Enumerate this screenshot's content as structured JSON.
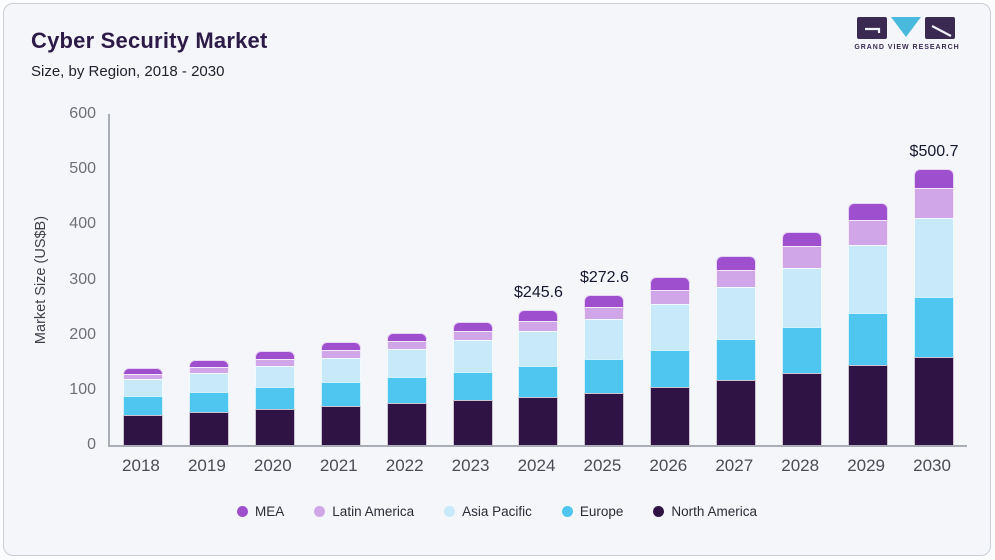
{
  "header": {
    "title": "Cyber Security Market",
    "subtitle": "Size, by Region, 2018 - 2030",
    "logo": {
      "brand": "GRAND VIEW RESEARCH",
      "block_color": "#3a2a52",
      "triangle_color": "#49b9de"
    }
  },
  "chart_data": {
    "type": "bar",
    "stacked": true,
    "title": "Cyber Security Market Size, by Region, 2018 - 2030",
    "xlabel": "",
    "ylabel": "Market Size (US$B)",
    "ylim": [
      0,
      600
    ],
    "yticks": [
      0,
      100,
      200,
      300,
      400,
      500,
      600
    ],
    "grid": false,
    "legend_position": "bottom",
    "categories": [
      "2018",
      "2019",
      "2020",
      "2021",
      "2022",
      "2023",
      "2024",
      "2025",
      "2026",
      "2027",
      "2028",
      "2029",
      "2030"
    ],
    "series": [
      {
        "name": "North America",
        "color": "#301345",
        "values": [
          55.0,
          60.5,
          66.0,
          71.0,
          76.5,
          81.5,
          87.0,
          95.0,
          105.0,
          117.0,
          130.5,
          145.5,
          160.0
        ]
      },
      {
        "name": "Europe",
        "color": "#4fc6ef",
        "values": [
          34.0,
          36.5,
          39.5,
          43.5,
          47.5,
          51.5,
          56.0,
          61.0,
          68.0,
          75.5,
          84.0,
          93.0,
          108.0
        ]
      },
      {
        "name": "Asia Pacific",
        "color": "#c7e9f9",
        "values": [
          30.0,
          33.5,
          38.0,
          43.5,
          49.5,
          56.5,
          63.5,
          72.0,
          82.0,
          93.5,
          107.0,
          123.5,
          144.0
        ]
      },
      {
        "name": "Latin America",
        "color": "#d0a6e8",
        "values": [
          9.5,
          11.0,
          12.5,
          13.8,
          15.2,
          16.8,
          19.0,
          22.0,
          26.0,
          32.0,
          39.0,
          46.0,
          54.0
        ]
      },
      {
        "name": "MEA",
        "color": "#9e4fcd",
        "values": [
          11.6,
          13.1,
          14.0,
          14.4,
          14.8,
          16.4,
          20.1,
          22.6,
          24.0,
          24.0,
          26.5,
          30.0,
          34.7
        ]
      }
    ],
    "totals": [
      140.1,
      154.6,
      170.0,
      186.2,
      203.5,
      222.7,
      245.6,
      272.6,
      305.0,
      342.0,
      387.0,
      438.0,
      500.7
    ],
    "annotations": [
      {
        "category": "2024",
        "text": "$245.6"
      },
      {
        "category": "2025",
        "text": "$272.6"
      },
      {
        "category": "2030",
        "text": "$500.7"
      }
    ],
    "legend": [
      "MEA",
      "Latin America",
      "Asia Pacific",
      "Europe",
      "North America"
    ]
  }
}
